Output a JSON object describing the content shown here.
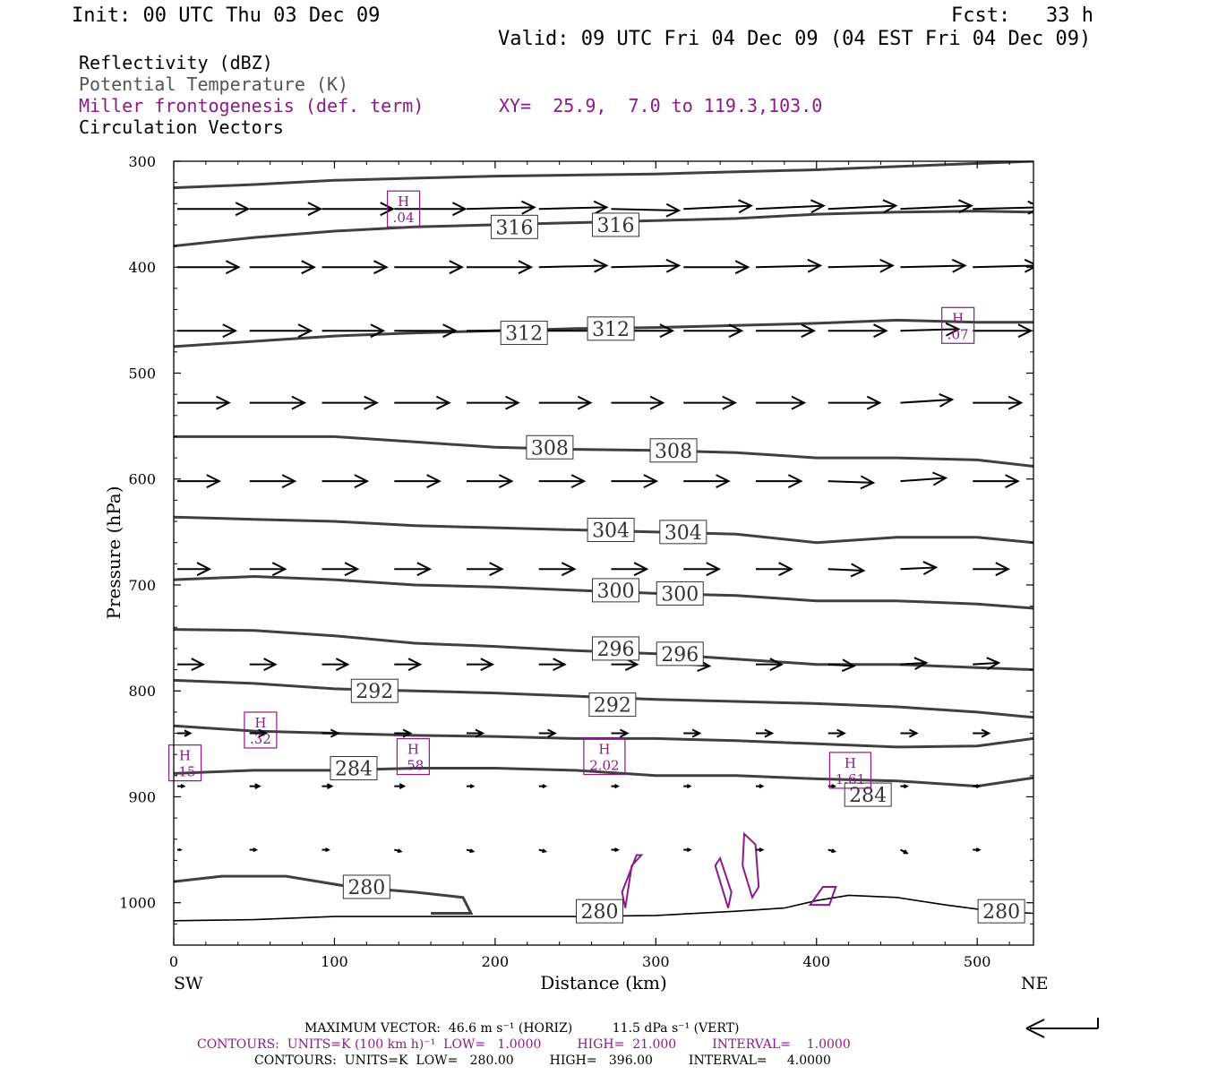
{
  "header": {
    "init": "Init: 00 UTC Thu 03 Dec 09",
    "fcst": "Fcst:   33 h",
    "valid": "Valid: 09 UTC Fri 04 Dec 09 (04 EST Fri 04 Dec 09)"
  },
  "fields": {
    "f1": "Reflectivity (dBZ)",
    "f2": "Potential Temperature (K)",
    "f3": "Miller frontogenesis (def. term)",
    "xy": "XY=  25.9,  7.0 to 119.3,103.0",
    "f4": "Circulation Vectors"
  },
  "axes": {
    "ylabel": "Pressure (hPa)",
    "xlabel": "Distance (km)",
    "left_end": "SW",
    "right_end": "NE",
    "y_ticks": [
      "300",
      "400",
      "500",
      "600",
      "700",
      "800",
      "900",
      "1000"
    ],
    "x_ticks": [
      "0",
      "100",
      "200",
      "300",
      "400",
      "500"
    ]
  },
  "footer": {
    "max_vector": "MAXIMUM VECTOR:  46.6 m s⁻¹ (HORIZ)          11.5 dPa s⁻¹ (VERT)",
    "contours_purple": "CONTOURS:  UNITS=K (100 km h)⁻¹  LOW=   1.0000         HIGH=  21.000         INTERVAL=    1.0000",
    "contours_black": "CONTOURS:  UNITS=K  LOW=   280.00         HIGH=   396.00         INTERVAL=     4.0000"
  },
  "colors": {
    "theta": "#404040",
    "fronto": "#8b1a8b",
    "vector": "#000000",
    "terrain": "#000000"
  },
  "chart_data": {
    "type": "contour-cross-section",
    "x_axis": {
      "label": "Distance (km)",
      "range": [
        0,
        535
      ]
    },
    "y_axis": {
      "label": "Pressure (hPa)",
      "range": [
        300,
        1040
      ],
      "inverted": true
    },
    "theta_contours": [
      {
        "level": 280,
        "points": [
          [
            0,
            980
          ],
          [
            30,
            975
          ],
          [
            70,
            975
          ],
          [
            110,
            985
          ],
          [
            150,
            990
          ],
          [
            180,
            995
          ],
          [
            185,
            1010
          ],
          [
            160,
            1010
          ]
        ]
      },
      {
        "level": 284,
        "points": [
          [
            0,
            878
          ],
          [
            50,
            875
          ],
          [
            100,
            875
          ],
          [
            150,
            873
          ],
          [
            200,
            873
          ],
          [
            250,
            875
          ],
          [
            300,
            880
          ],
          [
            350,
            880
          ],
          [
            400,
            883
          ],
          [
            450,
            885
          ],
          [
            500,
            890
          ],
          [
            535,
            882
          ]
        ]
      },
      {
        "level": 288,
        "points": [
          [
            0,
            833
          ],
          [
            50,
            838
          ],
          [
            100,
            840
          ],
          [
            150,
            842
          ],
          [
            200,
            843
          ],
          [
            250,
            845
          ],
          [
            300,
            845
          ],
          [
            350,
            847
          ],
          [
            400,
            850
          ],
          [
            450,
            853
          ],
          [
            500,
            852
          ],
          [
            535,
            845
          ]
        ]
      },
      {
        "level": 292,
        "points": [
          [
            0,
            790
          ],
          [
            50,
            793
          ],
          [
            100,
            798
          ],
          [
            150,
            800
          ],
          [
            200,
            802
          ],
          [
            250,
            805
          ],
          [
            300,
            808
          ],
          [
            350,
            810
          ],
          [
            400,
            812
          ],
          [
            450,
            815
          ],
          [
            500,
            820
          ],
          [
            535,
            825
          ]
        ]
      },
      {
        "level": 296,
        "points": [
          [
            0,
            742
          ],
          [
            50,
            743
          ],
          [
            100,
            748
          ],
          [
            150,
            755
          ],
          [
            200,
            758
          ],
          [
            250,
            762
          ],
          [
            300,
            765
          ],
          [
            350,
            770
          ],
          [
            400,
            775
          ],
          [
            450,
            775
          ],
          [
            500,
            778
          ],
          [
            535,
            780
          ]
        ]
      },
      {
        "level": 300,
        "points": [
          [
            0,
            695
          ],
          [
            50,
            692
          ],
          [
            100,
            695
          ],
          [
            150,
            700
          ],
          [
            200,
            702
          ],
          [
            250,
            705
          ],
          [
            300,
            708
          ],
          [
            350,
            710
          ],
          [
            400,
            715
          ],
          [
            450,
            715
          ],
          [
            500,
            718
          ],
          [
            535,
            722
          ]
        ]
      },
      {
        "level": 304,
        "points": [
          [
            0,
            636
          ],
          [
            50,
            638
          ],
          [
            100,
            640
          ],
          [
            150,
            644
          ],
          [
            200,
            646
          ],
          [
            250,
            648
          ],
          [
            300,
            650
          ],
          [
            350,
            652
          ],
          [
            400,
            660
          ],
          [
            450,
            655
          ],
          [
            500,
            655
          ],
          [
            535,
            660
          ]
        ]
      },
      {
        "level": 308,
        "points": [
          [
            0,
            560
          ],
          [
            50,
            560
          ],
          [
            100,
            560
          ],
          [
            150,
            565
          ],
          [
            200,
            570
          ],
          [
            250,
            572
          ],
          [
            300,
            573
          ],
          [
            350,
            575
          ],
          [
            400,
            580
          ],
          [
            450,
            580
          ],
          [
            500,
            582
          ],
          [
            535,
            588
          ]
        ]
      },
      {
        "level": 312,
        "points": [
          [
            0,
            475
          ],
          [
            50,
            470
          ],
          [
            100,
            465
          ],
          [
            150,
            462
          ],
          [
            200,
            460
          ],
          [
            250,
            458
          ],
          [
            300,
            457
          ],
          [
            350,
            455
          ],
          [
            400,
            453
          ],
          [
            450,
            450
          ],
          [
            500,
            452
          ],
          [
            535,
            452
          ]
        ]
      },
      {
        "level": 316,
        "points": [
          [
            0,
            380
          ],
          [
            50,
            372
          ],
          [
            100,
            366
          ],
          [
            150,
            362
          ],
          [
            200,
            360
          ],
          [
            250,
            358
          ],
          [
            300,
            356
          ],
          [
            350,
            354
          ],
          [
            400,
            350
          ],
          [
            450,
            348
          ],
          [
            500,
            347
          ],
          [
            535,
            348
          ]
        ]
      },
      {
        "level": 320,
        "points": [
          [
            0,
            325
          ],
          [
            50,
            322
          ],
          [
            100,
            318
          ],
          [
            150,
            316
          ],
          [
            200,
            314
          ],
          [
            250,
            313
          ],
          [
            300,
            312
          ],
          [
            350,
            310
          ],
          [
            400,
            308
          ],
          [
            450,
            305
          ],
          [
            500,
            302
          ],
          [
            535,
            300
          ]
        ]
      }
    ],
    "theta_labels": [
      {
        "text": "316",
        "x": 212,
        "p": 362
      },
      {
        "text": "316",
        "x": 275,
        "p": 360
      },
      {
        "text": "312",
        "x": 218,
        "p": 462
      },
      {
        "text": "312",
        "x": 272,
        "p": 458
      },
      {
        "text": "308",
        "x": 234,
        "p": 570
      },
      {
        "text": "308",
        "x": 311,
        "p": 573
      },
      {
        "text": "304",
        "x": 272,
        "p": 648
      },
      {
        "text": "304",
        "x": 317,
        "p": 650
      },
      {
        "text": "300",
        "x": 275,
        "p": 705
      },
      {
        "text": "300",
        "x": 315,
        "p": 708
      },
      {
        "text": "296",
        "x": 275,
        "p": 760
      },
      {
        "text": "296",
        "x": 315,
        "p": 765
      },
      {
        "text": "292",
        "x": 125,
        "p": 800
      },
      {
        "text": "292",
        "x": 273,
        "p": 813
      },
      {
        "text": "284",
        "x": 112,
        "p": 873
      },
      {
        "text": "284",
        "x": 432,
        "p": 898
      },
      {
        "text": "280",
        "x": 120,
        "p": 985
      },
      {
        "text": "280",
        "x": 265,
        "p": 1008
      },
      {
        "text": "280",
        "x": 515,
        "p": 1008
      }
    ],
    "fronto_maxima": [
      {
        "label": "H",
        "value": ".04",
        "x": 143,
        "p": 345
      },
      {
        "label": "H",
        "value": ".07",
        "x": 488,
        "p": 455
      },
      {
        "label": "H",
        "value": ".32",
        "x": 54,
        "p": 837
      },
      {
        "label": "H",
        "value": ".15",
        "x": 7,
        "p": 868
      },
      {
        "label": "H",
        "value": ".58",
        "x": 149,
        "p": 862
      },
      {
        "label": "H",
        "value": "2.02",
        "x": 268,
        "p": 862
      },
      {
        "label": "H",
        "value": "1.61",
        "x": 421,
        "p": 875
      }
    ],
    "vector_rows": [
      {
        "p": 345,
        "x": [
          0,
          45,
          90,
          135,
          180,
          225,
          270,
          315,
          360,
          405,
          450,
          495
        ],
        "u": [
          44,
          44,
          44,
          44,
          42,
          42,
          42,
          42,
          42,
          42,
          44,
          42
        ],
        "v": [
          0,
          0,
          0,
          0,
          -1,
          -1,
          1,
          -2,
          -2,
          -2,
          -2,
          -1
        ]
      },
      {
        "p": 400,
        "x": [
          0,
          45,
          90,
          135,
          180,
          225,
          270,
          315,
          360,
          405,
          450,
          495
        ],
        "u": [
          38,
          40,
          40,
          42,
          40,
          42,
          42,
          40,
          40,
          40,
          40,
          40
        ],
        "v": [
          0,
          0,
          0,
          0,
          0,
          -1,
          -1,
          0,
          -1,
          -1,
          -1,
          -1
        ]
      },
      {
        "p": 460,
        "x": [
          0,
          45,
          90,
          135,
          180,
          225,
          270,
          315,
          360,
          405,
          450,
          495
        ],
        "u": [
          36,
          38,
          38,
          38,
          38,
          38,
          38,
          36,
          36,
          36,
          36,
          36
        ],
        "v": [
          0,
          0,
          0,
          0,
          0,
          0,
          0,
          0,
          0,
          0,
          -1,
          0
        ]
      },
      {
        "p": 528,
        "x": [
          0,
          45,
          90,
          135,
          180,
          225,
          270,
          315,
          360,
          405,
          450,
          495
        ],
        "u": [
          32,
          34,
          34,
          34,
          32,
          32,
          32,
          32,
          30,
          32,
          32,
          30
        ],
        "v": [
          0,
          0,
          0,
          0,
          0,
          0,
          0,
          0,
          0,
          0,
          -2,
          0
        ]
      },
      {
        "p": 602,
        "x": [
          0,
          45,
          90,
          135,
          180,
          225,
          270,
          315,
          360,
          405,
          450,
          495
        ],
        "u": [
          26,
          28,
          28,
          28,
          28,
          28,
          28,
          28,
          28,
          28,
          28,
          28
        ],
        "v": [
          0,
          0,
          0,
          0,
          0,
          0,
          0,
          0,
          0,
          1,
          -2,
          0
        ]
      },
      {
        "p": 685,
        "x": [
          0,
          45,
          90,
          135,
          180,
          225,
          270,
          315,
          360,
          405,
          450,
          495
        ],
        "u": [
          20,
          22,
          22,
          22,
          22,
          22,
          22,
          22,
          22,
          22,
          22,
          22
        ],
        "v": [
          0,
          0,
          0,
          0,
          0,
          0,
          0,
          0,
          0,
          1,
          -1,
          0
        ]
      },
      {
        "p": 775,
        "x": [
          0,
          45,
          90,
          135,
          180,
          225,
          270,
          315,
          360,
          405,
          450,
          495
        ],
        "u": [
          16,
          16,
          16,
          16,
          16,
          16,
          16,
          16,
          16,
          16,
          16,
          16
        ],
        "v": [
          0,
          0,
          0,
          0,
          0,
          0,
          0,
          1,
          0,
          1,
          -1,
          -1
        ]
      },
      {
        "p": 840,
        "x": [
          0,
          45,
          90,
          135,
          180,
          225,
          270,
          315,
          360,
          405,
          450,
          495
        ],
        "u": [
          8,
          10,
          10,
          10,
          10,
          10,
          10,
          10,
          10,
          10,
          10,
          10
        ],
        "v": [
          0,
          0,
          0,
          0,
          0,
          0,
          0,
          0,
          0,
          0,
          0,
          0
        ]
      },
      {
        "p": 890,
        "x": [
          0,
          45,
          90,
          135,
          180,
          225,
          270,
          315,
          360,
          405,
          450,
          495
        ],
        "u": [
          4,
          6,
          6,
          6,
          4,
          4,
          4,
          4,
          4,
          4,
          4,
          4
        ],
        "v": [
          0,
          0,
          0,
          0,
          0,
          0,
          0,
          0,
          0,
          0,
          0,
          0
        ]
      },
      {
        "p": 950,
        "x": [
          0,
          45,
          90,
          135,
          180,
          225,
          270,
          315,
          360,
          405,
          450,
          495
        ],
        "u": [
          2,
          4,
          4,
          4,
          4,
          4,
          4,
          4,
          4,
          4,
          4,
          4
        ],
        "v": [
          0,
          0,
          0,
          1,
          1,
          1,
          0,
          0,
          0,
          1,
          2,
          0
        ]
      }
    ],
    "terrain": [
      [
        0,
        1017
      ],
      [
        50,
        1016
      ],
      [
        100,
        1013
      ],
      [
        150,
        1013
      ],
      [
        200,
        1013
      ],
      [
        250,
        1013
      ],
      [
        300,
        1012
      ],
      [
        350,
        1008
      ],
      [
        380,
        1005
      ],
      [
        400,
        998
      ],
      [
        420,
        993
      ],
      [
        450,
        995
      ],
      [
        480,
        1002
      ],
      [
        510,
        1008
      ],
      [
        535,
        1010
      ]
    ],
    "fronto_contours": [
      [
        [
          281,
          1005
        ],
        [
          285,
          965
        ],
        [
          291,
          955
        ],
        [
          288,
          955
        ],
        [
          279,
          990
        ]
      ],
      [
        [
          337,
          965
        ],
        [
          345,
          1005
        ],
        [
          347,
          990
        ],
        [
          340,
          958
        ]
      ],
      [
        [
          354,
          965
        ],
        [
          360,
          995
        ],
        [
          364,
          985
        ],
        [
          362,
          945
        ],
        [
          355,
          935
        ]
      ],
      [
        [
          396,
          1002
        ],
        [
          404,
          985
        ],
        [
          412,
          985
        ],
        [
          408,
          1002
        ]
      ]
    ]
  }
}
